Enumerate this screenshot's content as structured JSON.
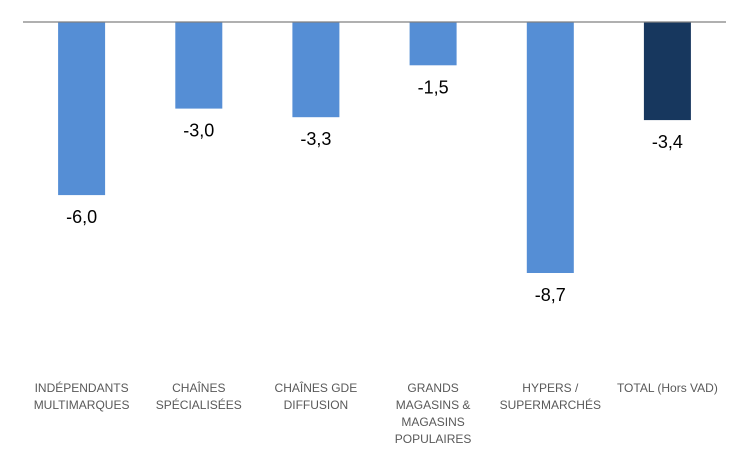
{
  "chart_data": {
    "type": "bar",
    "categories": [
      [
        "INDÉPENDANTS",
        "MULTIMARQUES"
      ],
      [
        "CHAÎNES",
        "SPÉCIALISÉES"
      ],
      [
        "CHAÎNES GDE",
        "DIFFUSION"
      ],
      [
        "GRANDS",
        "MAGASINS &",
        "MAGASINS",
        "POPULAIRES"
      ],
      [
        "HYPERS /",
        "SUPERMARCHÉS"
      ],
      [
        "TOTAL (Hors VAD)"
      ]
    ],
    "values": [
      -6.0,
      -3.0,
      -3.3,
      -1.5,
      -8.7,
      -3.4
    ],
    "value_labels": [
      "-6,0",
      "-3,0",
      "-3,3",
      "-1,5",
      "-8,7",
      "-3,4"
    ],
    "colors": [
      "#558ED5",
      "#558ED5",
      "#558ED5",
      "#558ED5",
      "#558ED5",
      "#17375E"
    ],
    "axis_color": "#808080",
    "ylim": [
      -8.7,
      0
    ],
    "grid": false,
    "legend": "none"
  }
}
